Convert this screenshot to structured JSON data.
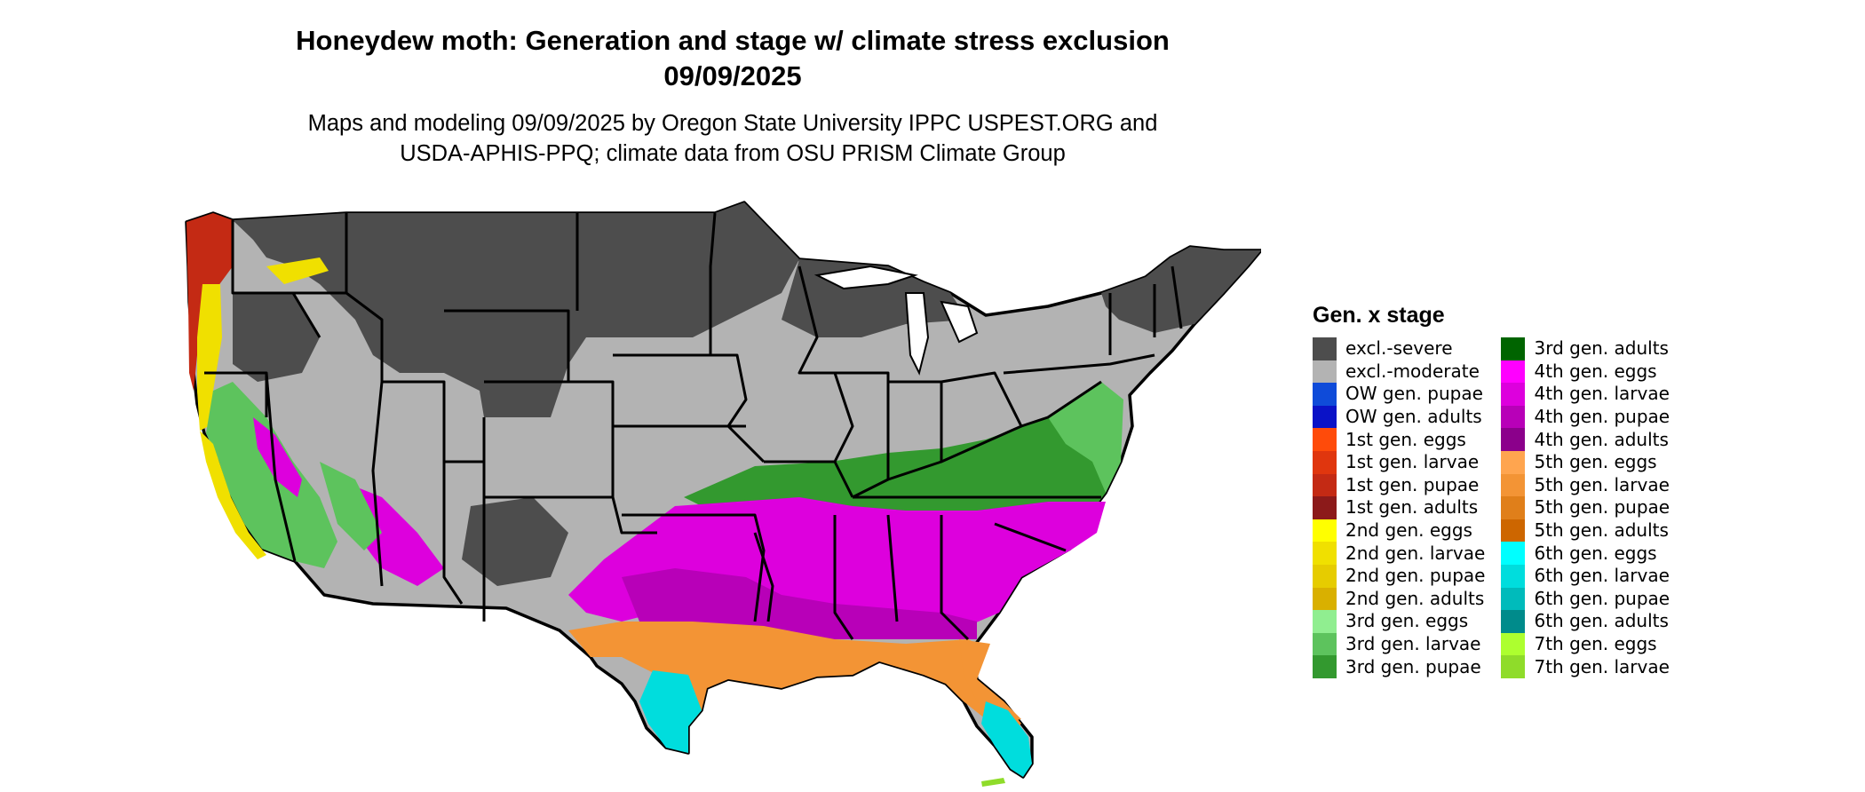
{
  "title_line1": "Honeydew moth: Generation and stage w/ climate stress exclusion",
  "title_line2": "09/09/2025",
  "subtitle_line1": "Maps and modeling 09/09/2025 by Oregon State University IPPC USPEST.ORG and",
  "subtitle_line2": "USDA-APHIS-PPQ; climate data from OSU PRISM Climate Group",
  "legend": {
    "title": "Gen. x stage",
    "columns": [
      [
        {
          "label": "excl.-severe",
          "color": "#4d4d4d"
        },
        {
          "label": "excl.-moderate",
          "color": "#b3b3b3"
        },
        {
          "label": "OW gen. pupae",
          "color": "#0f4bd9"
        },
        {
          "label": "OW gen. adults",
          "color": "#0a12c7"
        },
        {
          "label": "1st gen. eggs",
          "color": "#ff4b0a"
        },
        {
          "label": "1st gen. larvae",
          "color": "#e0360e"
        },
        {
          "label": "1st gen. pupae",
          "color": "#c42a14"
        },
        {
          "label": "1st gen. adults",
          "color": "#8c1a1a"
        },
        {
          "label": "2nd gen. eggs",
          "color": "#ffff00"
        },
        {
          "label": "2nd gen. larvae",
          "color": "#f0e000"
        },
        {
          "label": "2nd gen. pupae",
          "color": "#e6cc00"
        },
        {
          "label": "2nd gen. adults",
          "color": "#d9b000"
        },
        {
          "label": "3rd gen. eggs",
          "color": "#90ee90"
        },
        {
          "label": "3rd gen. larvae",
          "color": "#5dc35d"
        },
        {
          "label": "3rd gen. pupae",
          "color": "#33992f"
        }
      ],
      [
        {
          "label": "3rd gen. adults",
          "color": "#006400"
        },
        {
          "label": "4th gen. eggs",
          "color": "#ff00ff"
        },
        {
          "label": "4th gen. larvae",
          "color": "#dd00dd"
        },
        {
          "label": "4th gen. pupae",
          "color": "#b800b8"
        },
        {
          "label": "4th gen. adults",
          "color": "#8b008b"
        },
        {
          "label": "5th gen. eggs",
          "color": "#ffa54f"
        },
        {
          "label": "5th gen. larvae",
          "color": "#f39435"
        },
        {
          "label": "5th gen. pupae",
          "color": "#e07f1a"
        },
        {
          "label": "5th gen. adults",
          "color": "#cd6600"
        },
        {
          "label": "6th gen. eggs",
          "color": "#00ffff"
        },
        {
          "label": "6th gen. larvae",
          "color": "#00dddd"
        },
        {
          "label": "6th gen. pupae",
          "color": "#00bbbb"
        },
        {
          "label": "6th gen. adults",
          "color": "#008b8b"
        },
        {
          "label": "7th gen. eggs",
          "color": "#adff2f"
        },
        {
          "label": "7th gen. larvae",
          "color": "#8fdc2a"
        }
      ]
    ]
  }
}
